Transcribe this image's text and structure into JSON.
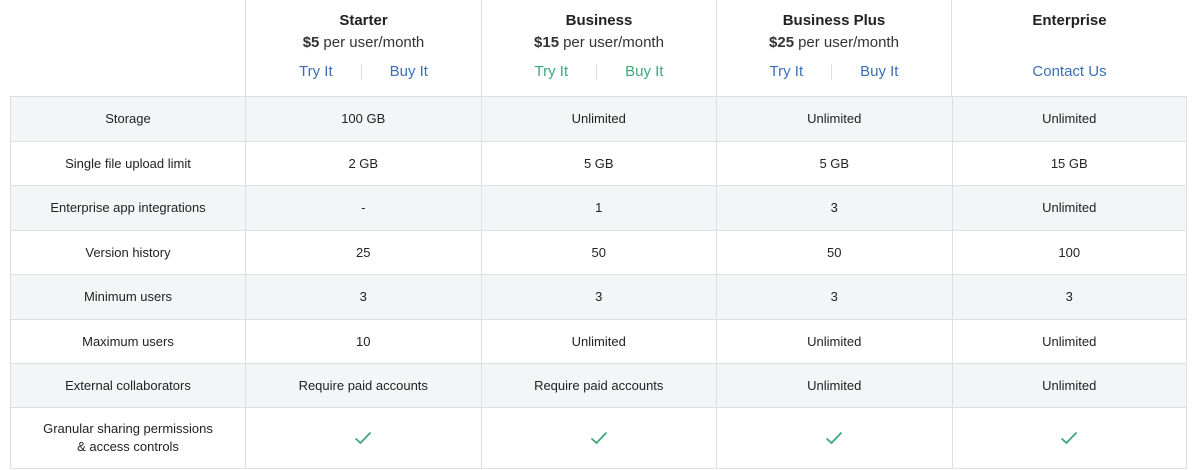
{
  "plans": [
    {
      "name": "Starter",
      "price": "$5",
      "unit": "per user/month",
      "links": [
        "Try It",
        "Buy It"
      ],
      "link_color": "#3b6fb6"
    },
    {
      "name": "Business",
      "price": "$15",
      "unit": "per user/month",
      "links": [
        "Try It",
        "Buy It"
      ],
      "link_color": "#3ea878"
    },
    {
      "name": "Business Plus",
      "price": "$25",
      "unit": "per user/month",
      "links": [
        "Try It",
        "Buy It"
      ],
      "link_color": "#3b6fb6"
    },
    {
      "name": "Enterprise",
      "price": "",
      "unit": "",
      "links": [
        "Contact Us"
      ],
      "link_color": "#3b6fb6"
    }
  ],
  "rows": [
    {
      "label": "Storage",
      "values": [
        "100 GB",
        "Unlimited",
        "Unlimited",
        "Unlimited"
      ]
    },
    {
      "label": "Single file upload limit",
      "values": [
        "2 GB",
        "5 GB",
        "5 GB",
        "15 GB"
      ]
    },
    {
      "label": "Enterprise app integrations",
      "values": [
        "-",
        "1",
        "3",
        "Unlimited"
      ]
    },
    {
      "label": "Version history",
      "values": [
        "25",
        "50",
        "50",
        "100"
      ]
    },
    {
      "label": "Minimum users",
      "values": [
        "3",
        "3",
        "3",
        "3"
      ]
    },
    {
      "label": "Maximum users",
      "values": [
        "10",
        "Unlimited",
        "Unlimited",
        "Unlimited"
      ]
    },
    {
      "label": "External collaborators",
      "values": [
        "Require paid accounts",
        "Require paid accounts",
        "Unlimited",
        "Unlimited"
      ]
    },
    {
      "label": "Granular sharing permissions & access controls",
      "values": [
        "check-icon",
        "check-icon",
        "check-icon",
        "check-icon"
      ]
    }
  ],
  "check_color": "#3ea878"
}
